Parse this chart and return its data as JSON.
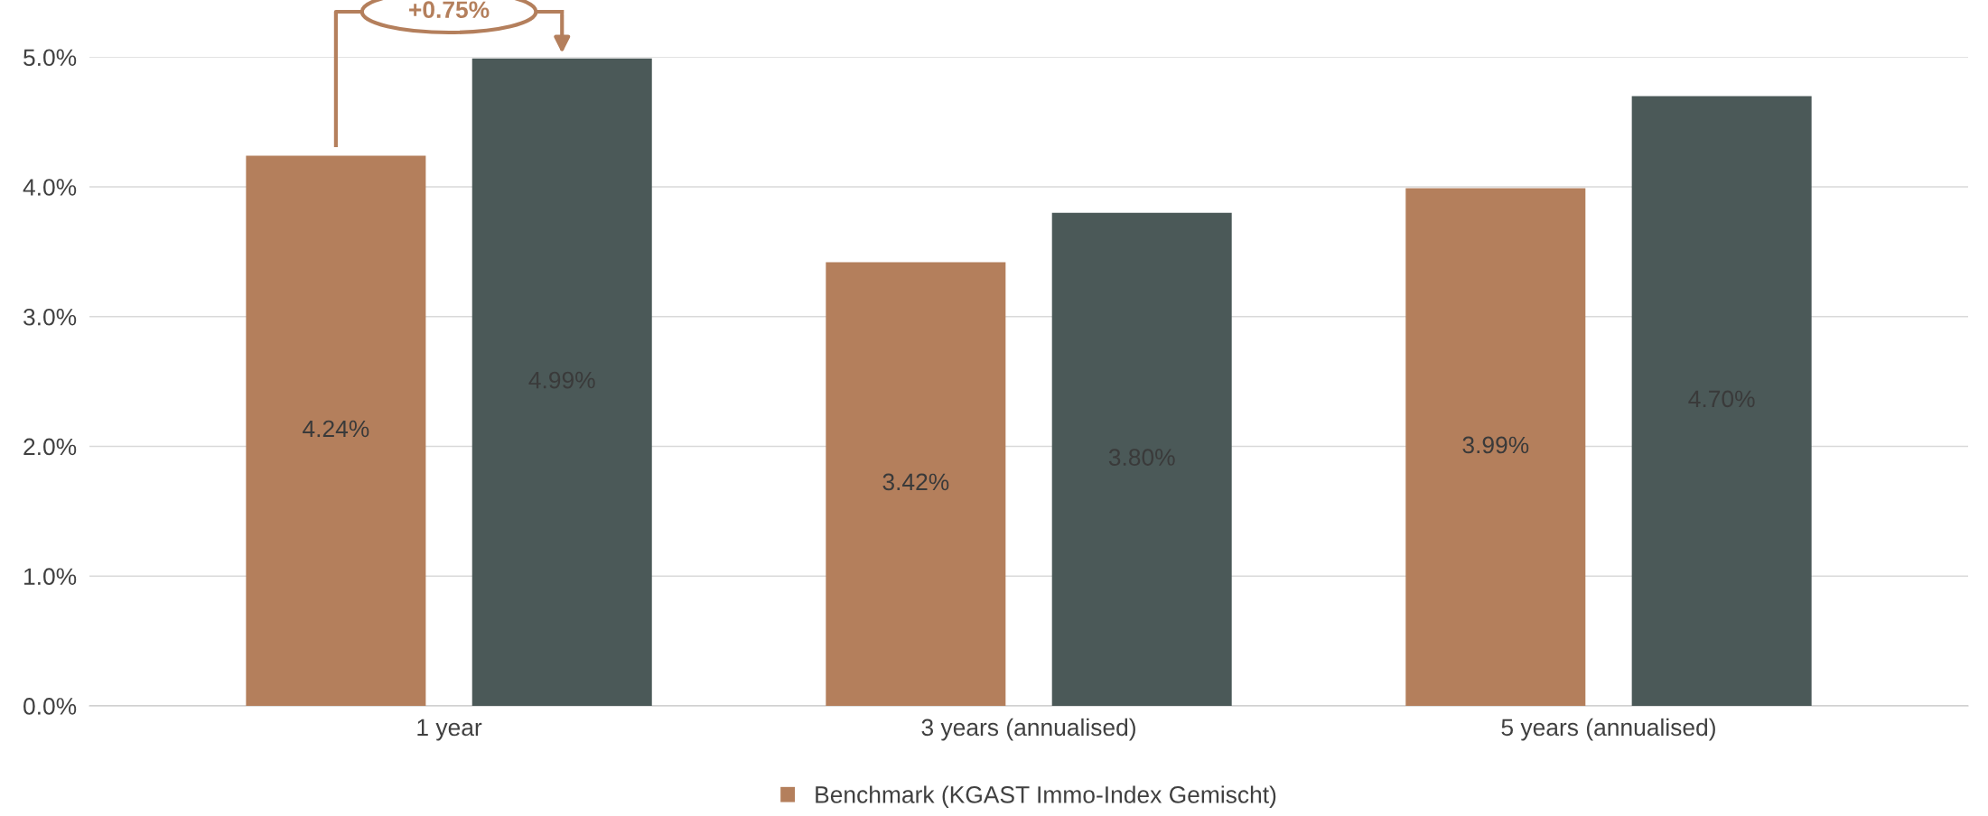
{
  "chart_data": {
    "type": "bar",
    "categories": [
      "1 year",
      "3 years (annualised)",
      "5 years (annualised)"
    ],
    "series": [
      {
        "name": "Benchmark (KGAST Immo-Index Gemischt)",
        "color": "#b47f5c",
        "values": [
          4.24,
          3.42,
          3.99
        ],
        "value_labels": [
          "4.24%",
          "3.42%",
          "3.99%"
        ]
      },
      {
        "color": "#4b5958",
        "values": [
          4.99,
          3.8,
          4.7
        ],
        "value_labels": [
          "4.99%",
          "3.80%",
          "4.70%"
        ]
      }
    ],
    "ylim": [
      0,
      5
    ],
    "yticks": [
      {
        "value": 0,
        "label": "0.0%"
      },
      {
        "value": 1,
        "label": "1.0%"
      },
      {
        "value": 2,
        "label": "2.0%"
      },
      {
        "value": 3,
        "label": "3.0%"
      },
      {
        "value": 4,
        "label": "4.0%"
      },
      {
        "value": 5,
        "label": "5.0%"
      }
    ],
    "grid": "y",
    "legend": "bottom",
    "annotations": [
      "+0.75%"
    ]
  }
}
